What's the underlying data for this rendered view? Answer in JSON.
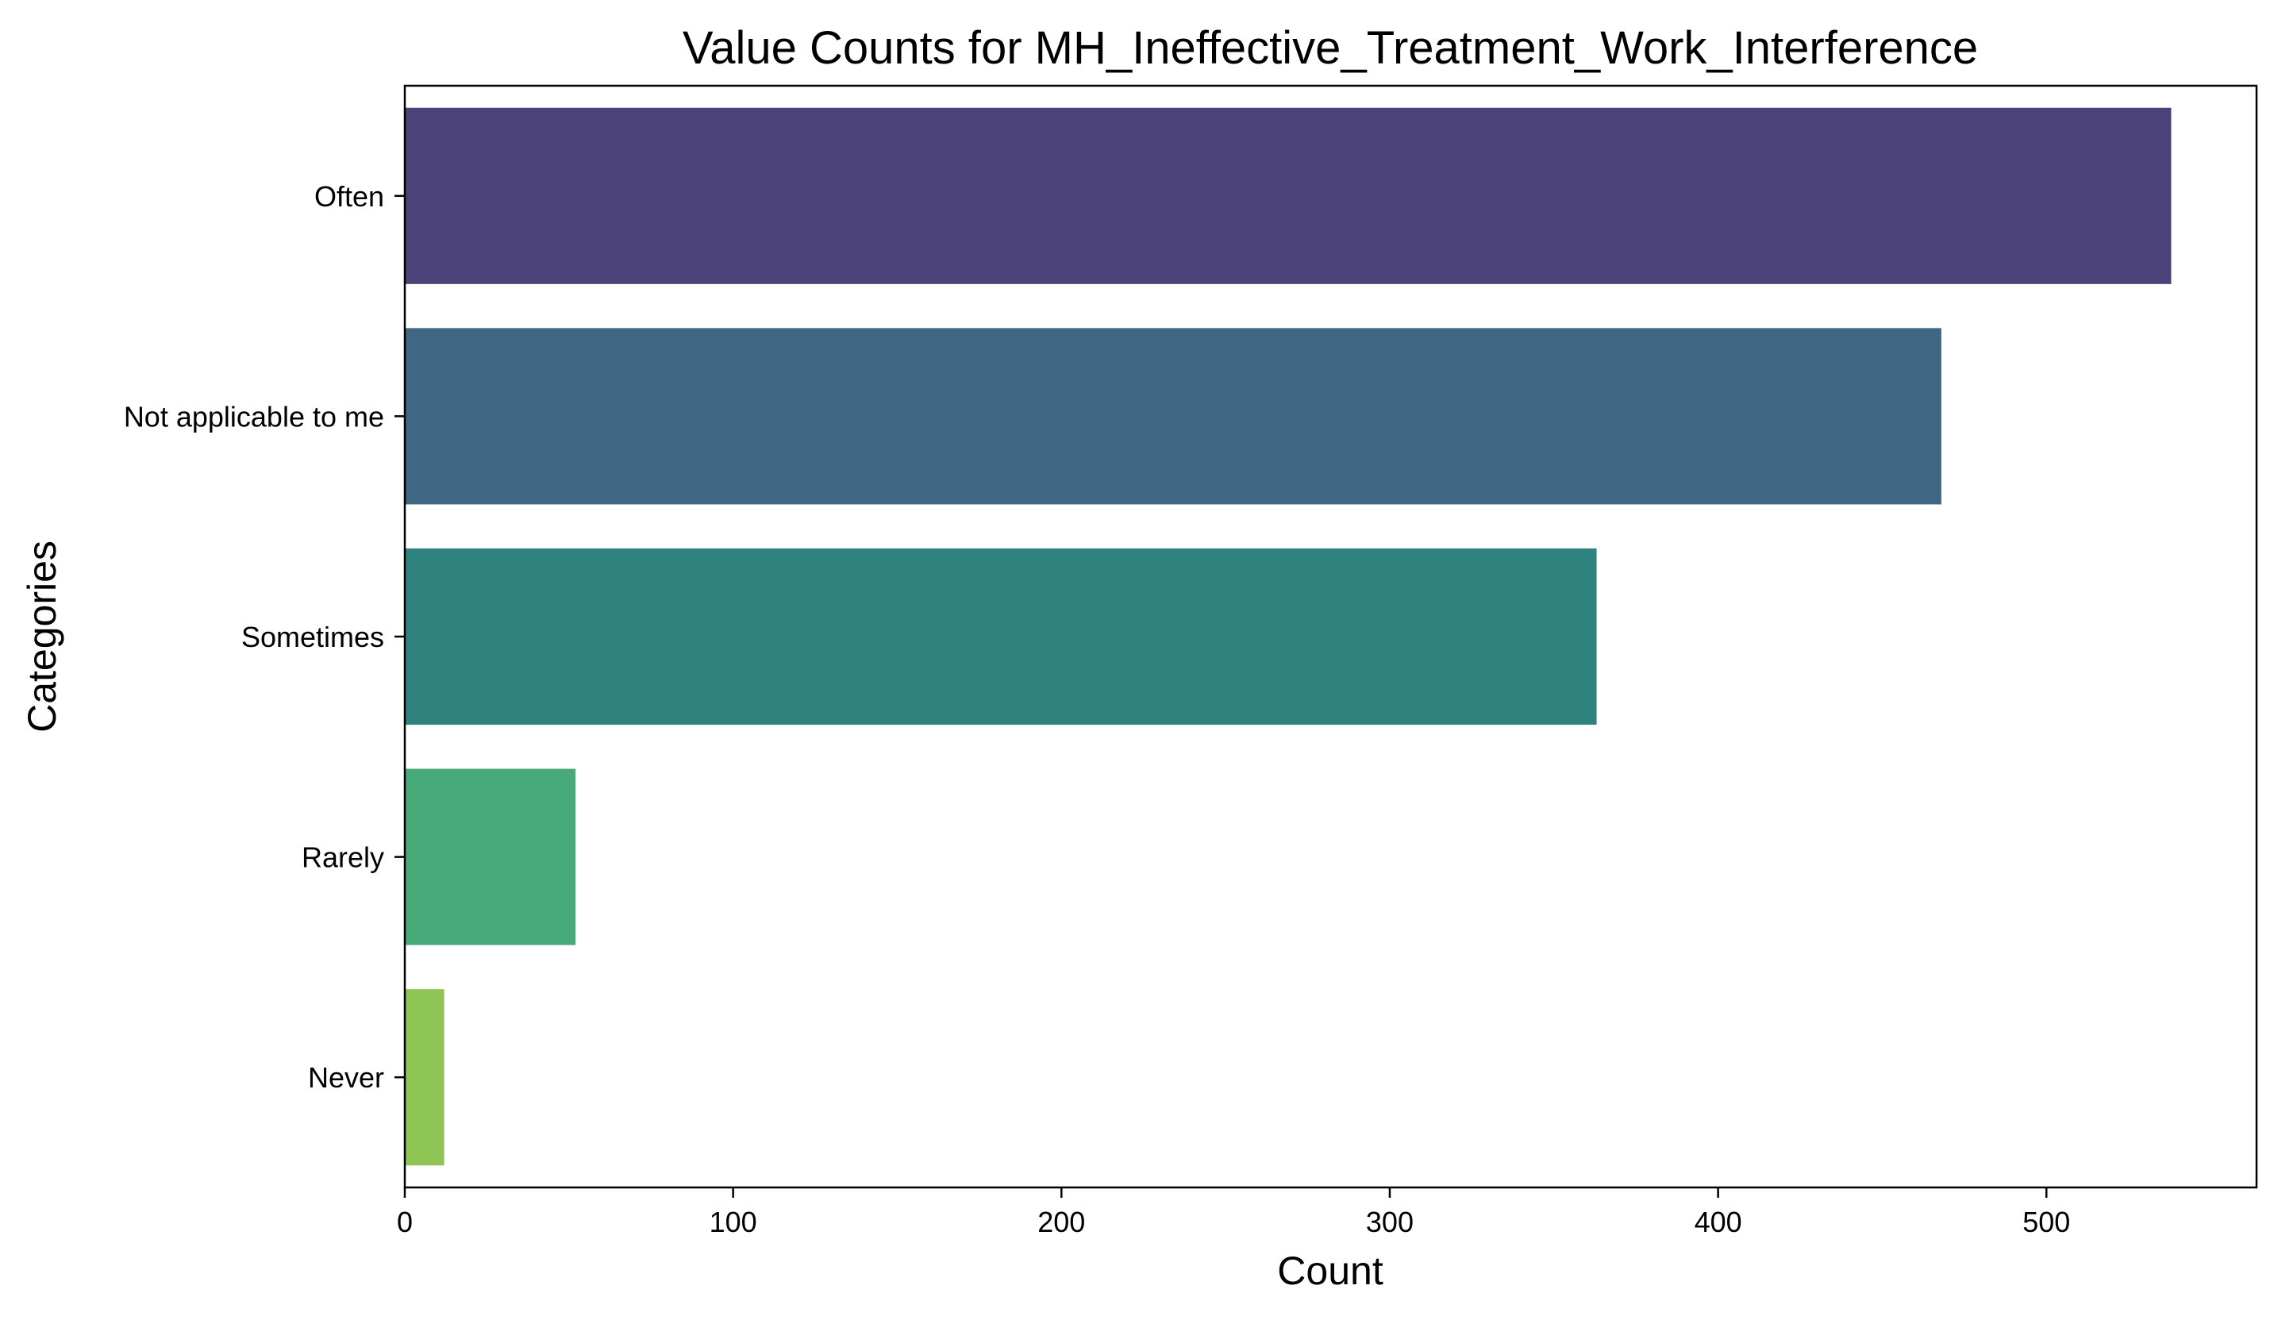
{
  "chart_data": {
    "type": "bar",
    "orientation": "horizontal",
    "title": "Value Counts for MH_Ineffective_Treatment_Work_Interference",
    "xlabel": "Count",
    "ylabel": "Categories",
    "categories": [
      "Often",
      "Not applicable to me",
      "Sometimes",
      "Rarely",
      "Never"
    ],
    "values": [
      538,
      468,
      363,
      52,
      12
    ],
    "colors": [
      "#4b4279",
      "#3f6682",
      "#2e837e",
      "#48a979",
      "#8ec555"
    ],
    "xlim": [
      0,
      564
    ],
    "xticks": [
      0,
      100,
      200,
      300,
      400,
      500
    ],
    "grid": false,
    "legend": "none"
  }
}
